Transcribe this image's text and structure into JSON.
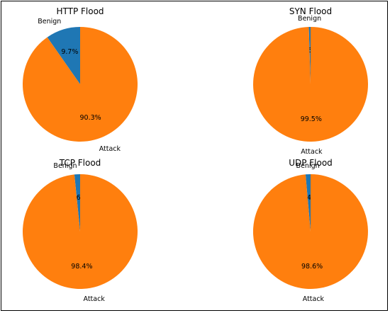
{
  "colors": {
    "benign": "#1f77b4",
    "attack": "#ff7f0e"
  },
  "chart_data": [
    {
      "type": "pie",
      "title": "HTTP Flood",
      "labels": [
        "Benign",
        "Attack"
      ],
      "values": [
        9.7,
        90.3
      ],
      "value_labels": [
        "9.7%",
        "90.3%"
      ]
    },
    {
      "type": "pie",
      "title": "SYN Flood",
      "labels": [
        "Benign",
        "Attack"
      ],
      "values": [
        0.5,
        99.5
      ],
      "value_labels": [
        "0.5%",
        "99.5%"
      ]
    },
    {
      "type": "pie",
      "title": "TCP Flood",
      "labels": [
        "Benign",
        "Attack"
      ],
      "values": [
        1.6,
        98.4
      ],
      "value_labels": [
        "1.6%",
        "98.4%"
      ]
    },
    {
      "type": "pie",
      "title": "UDP Flood",
      "labels": [
        "Benign",
        "Attack"
      ],
      "values": [
        1.4,
        98.6
      ],
      "value_labels": [
        "1.4%",
        "98.6%"
      ]
    }
  ]
}
